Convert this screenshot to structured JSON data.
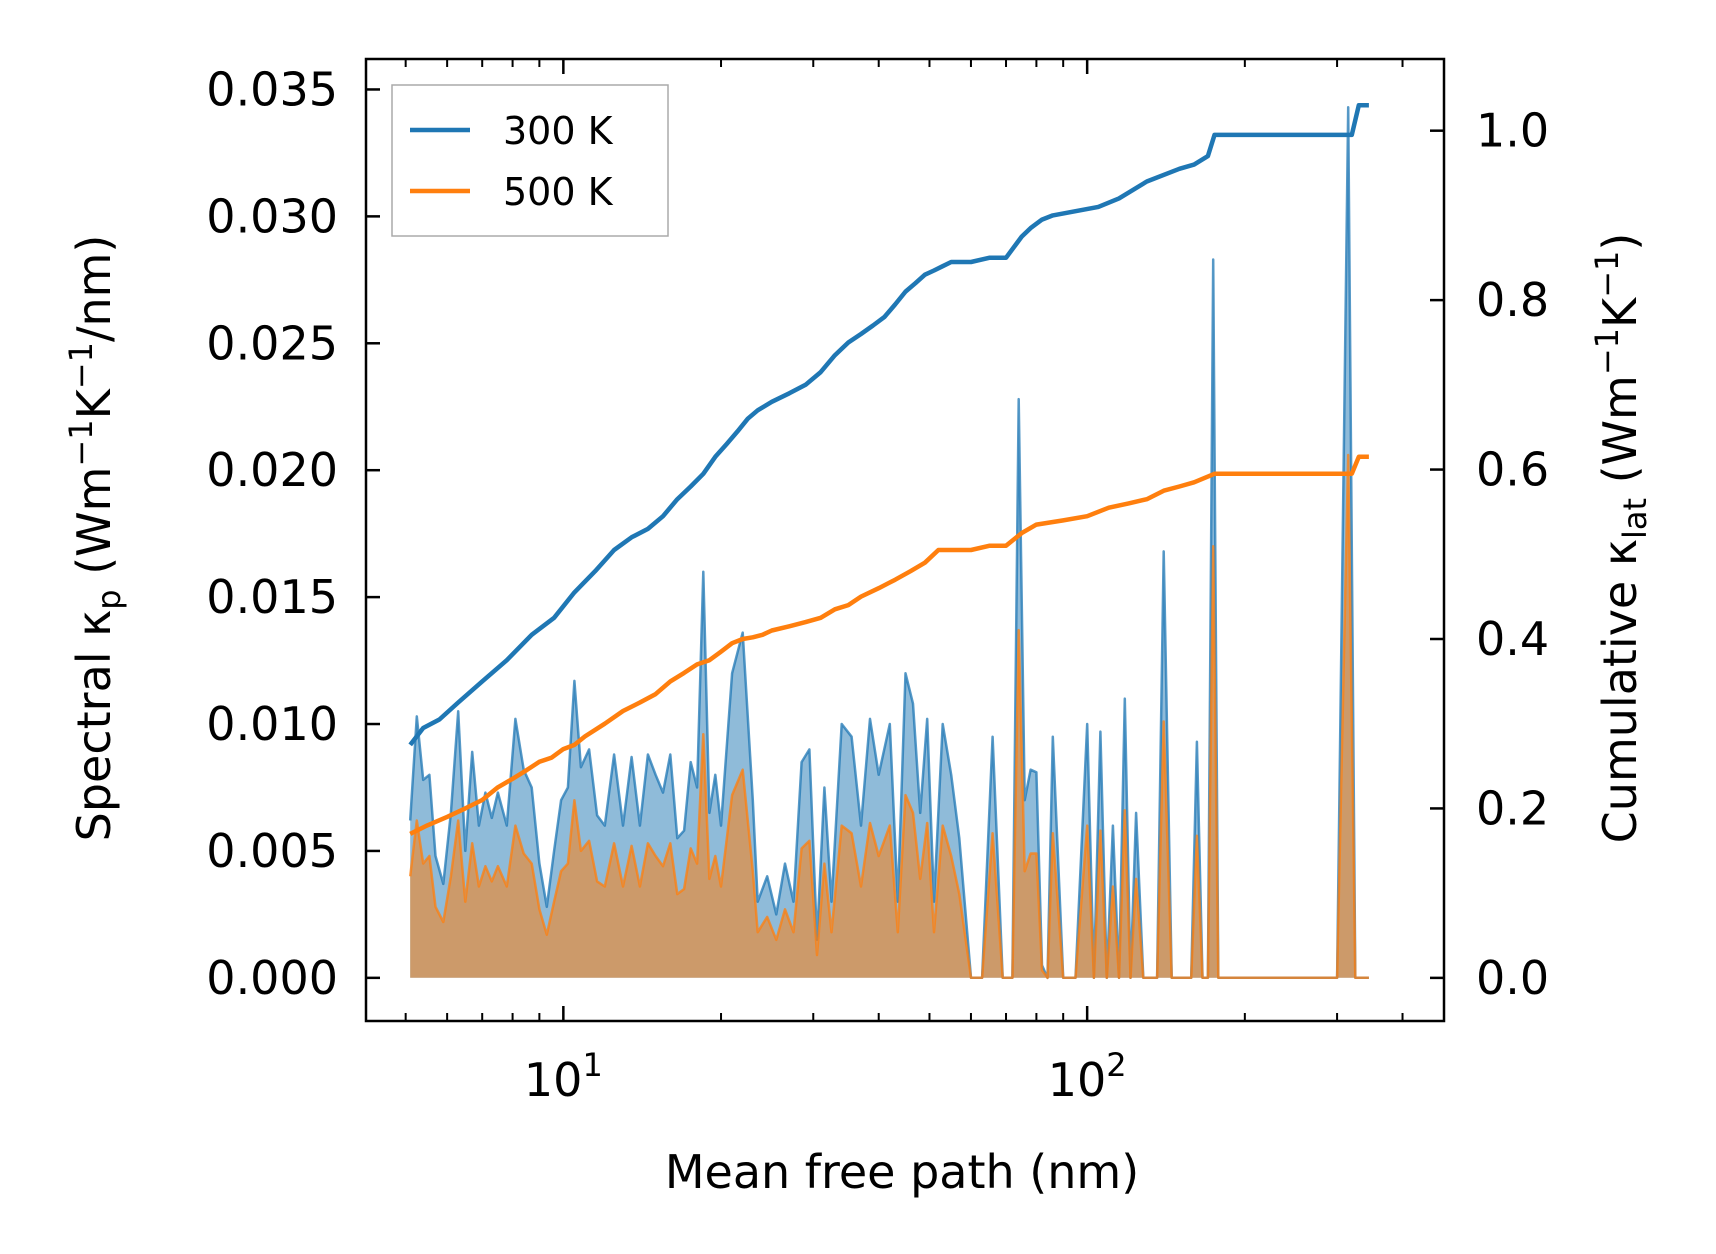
{
  "chart_data": {
    "type": "line",
    "x_scale": "log",
    "xlabel": "Mean free path (nm)",
    "ylabel_left": {
      "main": "Spectral κ",
      "sub": "p",
      "units_prefix": " (Wm",
      "exp1": "−1",
      "mid": "K",
      "exp2": "−1",
      "units_suffix": "/nm)"
    },
    "ylabel_right": {
      "main": "Cumulative κ",
      "sub": "lat",
      "units_prefix": " (Wm",
      "exp1": "−1",
      "mid": "K",
      "exp2": "−1",
      "units_suffix": ")"
    },
    "xlim": [
      4.2,
      480
    ],
    "ylim_left": [
      -0.0017,
      0.0362
    ],
    "ylim_right": [
      -0.0509,
      1.0846
    ],
    "x_major_ticks": [
      {
        "value": 10,
        "base": "10",
        "exp": "1"
      },
      {
        "value": 100,
        "base": "10",
        "exp": "2"
      }
    ],
    "yticks_left": [
      "0.000",
      "0.005",
      "0.010",
      "0.015",
      "0.020",
      "0.025",
      "0.030",
      "0.035"
    ],
    "yticks_right": [
      "0.0",
      "0.2",
      "0.4",
      "0.6",
      "0.8",
      "1.0"
    ],
    "legend": {
      "position": "top-left",
      "entries": [
        "300 K",
        "500 K"
      ]
    },
    "series": [
      {
        "name": "300 K",
        "color": "#1f77b4",
        "cumulative": {
          "x": [
            5.1,
            5.4,
            5.8,
            6.3,
            7.0,
            7.8,
            8.7,
            9.6,
            10.5,
            11.5,
            12.5,
            13.5,
            14.5,
            15.5,
            16.5,
            17.5,
            18.5,
            19.5,
            20.5,
            21.5,
            22.5,
            23.5,
            25,
            27,
            29,
            31,
            33,
            35,
            37,
            39,
            41,
            43,
            45,
            47,
            49,
            51,
            53,
            55,
            57,
            60,
            65,
            70,
            75,
            78,
            82,
            86,
            95,
            105,
            115,
            130,
            150,
            160,
            170,
            175,
            180,
            320,
            330,
            345
          ],
          "y": [
            0.275,
            0.295,
            0.305,
            0.325,
            0.35,
            0.375,
            0.405,
            0.425,
            0.455,
            0.48,
            0.505,
            0.52,
            0.53,
            0.545,
            0.565,
            0.58,
            0.595,
            0.615,
            0.63,
            0.645,
            0.66,
            0.67,
            0.68,
            0.69,
            0.7,
            0.715,
            0.735,
            0.75,
            0.76,
            0.77,
            0.78,
            0.795,
            0.81,
            0.82,
            0.83,
            0.835,
            0.84,
            0.845,
            0.845,
            0.845,
            0.85,
            0.85,
            0.875,
            0.885,
            0.895,
            0.9,
            0.905,
            0.91,
            0.92,
            0.94,
            0.955,
            0.96,
            0.97,
            0.995,
            0.995,
            0.995,
            1.03,
            1.03
          ]
        },
        "spectral": {
          "x": [
            5.1,
            5.25,
            5.4,
            5.55,
            5.7,
            5.9,
            6.1,
            6.3,
            6.5,
            6.7,
            6.9,
            7.1,
            7.3,
            7.5,
            7.8,
            8.1,
            8.4,
            8.7,
            9.0,
            9.3,
            9.6,
            9.9,
            10.2,
            10.5,
            10.8,
            11.2,
            11.6,
            12.0,
            12.5,
            13.0,
            13.5,
            14.0,
            14.5,
            15.0,
            15.5,
            16.0,
            16.5,
            17.0,
            17.5,
            18.0,
            18.5,
            19.0,
            19.5,
            20.0,
            21.0,
            22.0,
            23.0,
            23.5,
            24.5,
            25.5,
            26.5,
            27.5,
            28.5,
            29.5,
            30.5,
            31.5,
            32.5,
            34.0,
            35.5,
            37.0,
            38.5,
            40.0,
            42.0,
            43.5,
            45.0,
            46.5,
            48.0,
            49.5,
            51.0,
            53.0,
            55.0,
            57.0,
            60.0,
            63.0,
            66.0,
            69.0,
            72.0,
            74.0,
            76.0,
            78.0,
            80.0,
            82.0,
            84.0,
            86.0,
            90.0,
            95.0,
            100.0,
            103.0,
            106.0,
            109.0,
            112.0,
            115.0,
            118.0,
            121.0,
            124.0,
            128.0,
            132.0,
            136.0,
            140.0,
            145.0,
            150.0,
            154.0,
            158.0,
            162.0,
            166.0,
            170.0,
            174.0,
            178.0,
            182.0,
            186.0,
            300.0,
            315.0,
            325.0,
            335.0,
            345.0
          ],
          "y": [
            0.0062,
            0.0103,
            0.0078,
            0.008,
            0.0048,
            0.0037,
            0.0065,
            0.0105,
            0.005,
            0.0089,
            0.006,
            0.0073,
            0.0063,
            0.0073,
            0.006,
            0.0102,
            0.0082,
            0.0075,
            0.0045,
            0.0028,
            0.005,
            0.007,
            0.0075,
            0.0117,
            0.0083,
            0.009,
            0.0064,
            0.006,
            0.0088,
            0.006,
            0.0087,
            0.006,
            0.0088,
            0.008,
            0.0073,
            0.0088,
            0.0055,
            0.0058,
            0.0085,
            0.0075,
            0.016,
            0.0065,
            0.008,
            0.006,
            0.012,
            0.0136,
            0.007,
            0.003,
            0.004,
            0.0025,
            0.0045,
            0.003,
            0.0085,
            0.009,
            0.0015,
            0.0075,
            0.003,
            0.01,
            0.0095,
            0.006,
            0.0102,
            0.008,
            0.01,
            0.003,
            0.012,
            0.0108,
            0.0065,
            0.0102,
            0.003,
            0.01,
            0.008,
            0.0055,
            0.0,
            0.0,
            0.0095,
            0.0,
            0.0,
            0.0228,
            0.007,
            0.0082,
            0.0081,
            0.0005,
            0.0,
            0.0095,
            0.0,
            0.0,
            0.01,
            0.0,
            0.0097,
            0.0,
            0.006,
            0.0,
            0.011,
            0.0,
            0.0065,
            0.0,
            0.0,
            0.0,
            0.0168,
            0.0,
            0.0,
            0.0,
            0.0,
            0.0093,
            0.0,
            0.0,
            0.0283,
            0.0,
            0.0,
            0.0,
            0.0,
            0.0343,
            0.0,
            0.0,
            0.0
          ]
        }
      },
      {
        "name": "500 K",
        "color": "#ff7f0e",
        "cumulative": {
          "x": [
            5.1,
            5.5,
            6.0,
            6.5,
            7.0,
            7.5,
            8.0,
            8.5,
            9.0,
            9.5,
            10.0,
            10.5,
            11.0,
            12.0,
            13.0,
            14.0,
            15.0,
            16.0,
            17.0,
            18.0,
            19.0,
            20.0,
            21.0,
            22.0,
            23.0,
            24.0,
            25.0,
            27.0,
            29.0,
            31.0,
            33.0,
            35.0,
            37.0,
            40.0,
            43.0,
            46.0,
            49.0,
            52.0,
            55.0,
            60.0,
            65.0,
            70.0,
            75.0,
            80.0,
            90.0,
            100.0,
            110.0,
            120.0,
            130.0,
            140.0,
            150.0,
            160.0,
            175.0,
            180.0,
            320.0,
            330.0,
            345.0
          ],
          "y": [
            0.17,
            0.18,
            0.19,
            0.2,
            0.21,
            0.225,
            0.235,
            0.245,
            0.255,
            0.26,
            0.27,
            0.275,
            0.285,
            0.3,
            0.315,
            0.325,
            0.335,
            0.35,
            0.36,
            0.37,
            0.375,
            0.385,
            0.395,
            0.4,
            0.402,
            0.405,
            0.41,
            0.415,
            0.42,
            0.425,
            0.435,
            0.44,
            0.45,
            0.46,
            0.47,
            0.48,
            0.49,
            0.505,
            0.505,
            0.505,
            0.51,
            0.51,
            0.525,
            0.535,
            0.54,
            0.545,
            0.555,
            0.56,
            0.565,
            0.575,
            0.58,
            0.585,
            0.595,
            0.595,
            0.595,
            0.615,
            0.615
          ]
        },
        "spectral": {
          "x": [
            5.1,
            5.25,
            5.4,
            5.55,
            5.7,
            5.9,
            6.1,
            6.3,
            6.5,
            6.7,
            6.9,
            7.1,
            7.3,
            7.5,
            7.8,
            8.1,
            8.4,
            8.7,
            9.0,
            9.3,
            9.6,
            9.9,
            10.2,
            10.5,
            10.8,
            11.2,
            11.6,
            12.0,
            12.5,
            13.0,
            13.5,
            14.0,
            14.5,
            15.0,
            15.5,
            16.0,
            16.5,
            17.0,
            17.5,
            18.0,
            18.5,
            19.0,
            19.5,
            20.0,
            21.0,
            22.0,
            23.0,
            23.5,
            24.5,
            25.5,
            26.5,
            27.5,
            28.5,
            29.5,
            30.5,
            31.5,
            32.5,
            34.0,
            35.5,
            37.0,
            38.5,
            40.0,
            42.0,
            43.5,
            45.0,
            46.5,
            48.0,
            49.5,
            51.0,
            53.0,
            55.0,
            57.0,
            60.0,
            63.0,
            66.0,
            69.0,
            72.0,
            74.0,
            76.0,
            78.0,
            80.0,
            82.0,
            84.0,
            86.0,
            90.0,
            95.0,
            100.0,
            103.0,
            106.0,
            109.0,
            112.0,
            115.0,
            118.0,
            121.0,
            124.0,
            128.0,
            132.0,
            136.0,
            140.0,
            145.0,
            150.0,
            154.0,
            158.0,
            162.0,
            166.0,
            170.0,
            174.0,
            178.0,
            182.0,
            186.0,
            300.0,
            315.0,
            325.0,
            335.0,
            345.0
          ],
          "y": [
            0.004,
            0.0062,
            0.0045,
            0.0048,
            0.0028,
            0.0022,
            0.004,
            0.0062,
            0.003,
            0.0053,
            0.0036,
            0.0044,
            0.0038,
            0.0044,
            0.0036,
            0.006,
            0.0049,
            0.0045,
            0.0027,
            0.0017,
            0.003,
            0.0042,
            0.0045,
            0.007,
            0.005,
            0.0054,
            0.0038,
            0.0036,
            0.0053,
            0.0036,
            0.0052,
            0.0036,
            0.0053,
            0.0048,
            0.0044,
            0.0053,
            0.0033,
            0.0035,
            0.0051,
            0.0045,
            0.0096,
            0.0039,
            0.0048,
            0.0036,
            0.0072,
            0.0082,
            0.0042,
            0.0018,
            0.0024,
            0.0015,
            0.0027,
            0.0018,
            0.0051,
            0.0054,
            0.0009,
            0.0045,
            0.0018,
            0.006,
            0.0057,
            0.0036,
            0.0061,
            0.0048,
            0.006,
            0.0018,
            0.0072,
            0.0065,
            0.0039,
            0.0061,
            0.0018,
            0.006,
            0.0048,
            0.0033,
            0.0,
            0.0,
            0.0057,
            0.0,
            0.0,
            0.0137,
            0.0042,
            0.0049,
            0.0049,
            0.0003,
            0.0,
            0.0057,
            0.0,
            0.0,
            0.006,
            0.0,
            0.0058,
            0.0,
            0.0036,
            0.0,
            0.0066,
            0.0,
            0.0039,
            0.0,
            0.0,
            0.0,
            0.0101,
            0.0,
            0.0,
            0.0,
            0.0,
            0.0056,
            0.0,
            0.0,
            0.017,
            0.0,
            0.0,
            0.0,
            0.0,
            0.0206,
            0.0,
            0.0,
            0.0
          ]
        }
      }
    ]
  }
}
